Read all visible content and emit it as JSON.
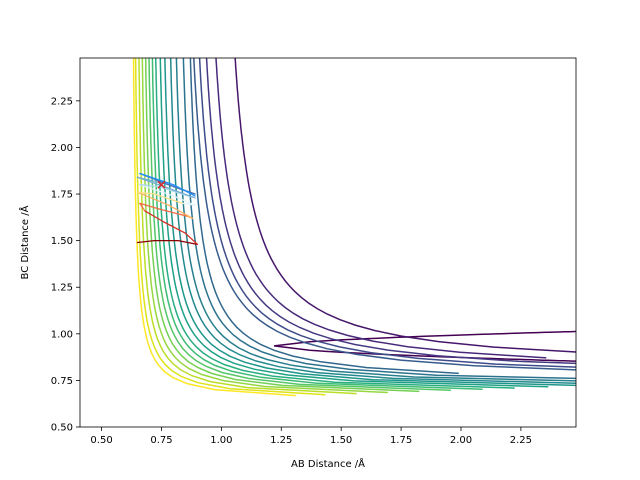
{
  "chart_data": {
    "type": "contour",
    "title": "",
    "xlabel": "AB Distance /Å",
    "ylabel": "BC Distance /Å",
    "xlim": [
      0.41,
      2.48
    ],
    "ylim": [
      0.5,
      2.48
    ],
    "x_ticks": [
      0.5,
      0.75,
      1.0,
      1.25,
      1.5,
      1.75,
      2.0,
      2.25
    ],
    "x_tick_labels": [
      "0.50",
      "0.75",
      "1.00",
      "1.25",
      "1.50",
      "1.75",
      "2.00",
      "2.25"
    ],
    "y_ticks": [
      0.5,
      0.75,
      1.0,
      1.25,
      1.5,
      1.75,
      2.0,
      2.25
    ],
    "y_tick_labels": [
      "0.50",
      "0.75",
      "1.00",
      "1.25",
      "1.50",
      "1.75",
      "2.00",
      "2.25"
    ],
    "grid": false,
    "contour_levels": [
      {
        "color": "#440154",
        "xmin": 1.22,
        "yasym": 0.85
      },
      {
        "color": "#46166b",
        "xmin": 1.09,
        "yasym": 0.81
      },
      {
        "color": "#472a7a",
        "xmin": 1.01,
        "yasym": 0.78
      },
      {
        "color": "#443a83",
        "xmin": 0.97,
        "yasym": 0.76
      },
      {
        "color": "#3e4c8a",
        "xmin": 0.94,
        "yasym": 0.745
      },
      {
        "color": "#375b8d",
        "xmin": 0.915,
        "yasym": 0.735
      },
      {
        "color": "#31688e",
        "xmin": 0.89,
        "yasym": 0.725
      },
      {
        "color": "#2c728e",
        "xmin": 0.86,
        "yasym": 0.715
      },
      {
        "color": "#277f8e",
        "xmin": 0.83,
        "yasym": 0.705
      },
      {
        "color": "#23898e",
        "xmin": 0.805,
        "yasym": 0.697
      },
      {
        "color": "#1f968b",
        "xmin": 0.78,
        "yasym": 0.69
      },
      {
        "color": "#1fa187",
        "xmin": 0.76,
        "yasym": 0.683
      },
      {
        "color": "#28ae80",
        "xmin": 0.74,
        "yasym": 0.676
      },
      {
        "color": "#3dbc74",
        "xmin": 0.725,
        "yasym": 0.67
      },
      {
        "color": "#56c667",
        "xmin": 0.71,
        "yasym": 0.664
      },
      {
        "color": "#75d054",
        "xmin": 0.695,
        "yasym": 0.658
      },
      {
        "color": "#95d840",
        "xmin": 0.68,
        "yasym": 0.652
      },
      {
        "color": "#bade28",
        "xmin": 0.665,
        "yasym": 0.646
      },
      {
        "color": "#dde318",
        "xmin": 0.65,
        "yasym": 0.64
      },
      {
        "color": "#fde725",
        "xmin": 0.64,
        "yasym": 0.635
      }
    ],
    "trajectory": {
      "colors": [
        "#8b0000",
        "#d73027",
        "#f46d43",
        "#fdae61",
        "#fee08b",
        "#e0f3f8",
        "#abd9e9",
        "#74add1",
        "#4575b4",
        "#1e90ff"
      ],
      "points": [
        [
          0.65,
          1.49
        ],
        [
          0.72,
          1.5
        ],
        [
          0.82,
          1.5
        ],
        [
          0.9,
          1.48
        ],
        [
          0.85,
          1.54
        ],
        [
          0.76,
          1.6
        ],
        [
          0.68,
          1.66
        ],
        [
          0.66,
          1.7
        ],
        [
          0.74,
          1.67
        ],
        [
          0.86,
          1.63
        ],
        [
          0.88,
          1.62
        ],
        [
          0.78,
          1.69
        ],
        [
          0.65,
          1.76
        ],
        [
          0.72,
          1.75
        ],
        [
          0.84,
          1.7
        ],
        [
          0.89,
          1.69
        ],
        [
          0.8,
          1.74
        ],
        [
          0.66,
          1.8
        ],
        [
          0.74,
          1.79
        ],
        [
          0.86,
          1.74
        ],
        [
          0.89,
          1.73
        ],
        [
          0.76,
          1.79
        ],
        [
          0.65,
          1.84
        ],
        [
          0.78,
          1.8
        ],
        [
          0.89,
          1.75
        ],
        [
          0.8,
          1.79
        ],
        [
          0.66,
          1.86
        ],
        [
          0.8,
          1.8
        ],
        [
          0.89,
          1.74
        ]
      ]
    },
    "start_marker": {
      "x": 0.75,
      "y": 1.8,
      "symbol": "x",
      "color": "#d62728"
    }
  }
}
